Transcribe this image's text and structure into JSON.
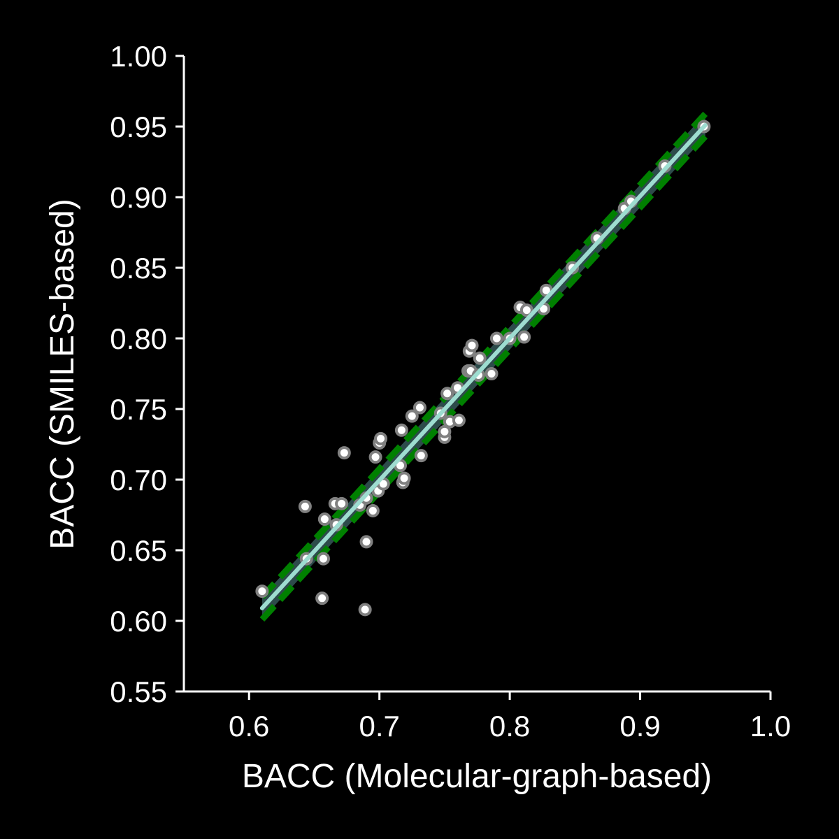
{
  "chart_data": {
    "type": "scatter",
    "title": "",
    "xlabel": "BACC (Molecular-graph-based)",
    "ylabel": "BACC (SMILES-based)",
    "xlim": [
      0.55,
      1.0
    ],
    "ylim": [
      0.55,
      1.0
    ],
    "xticks": [
      "0.6",
      "0.7",
      "0.8",
      "0.9",
      "1.0"
    ],
    "yticks": [
      "0.55",
      "0.60",
      "0.65",
      "0.70",
      "0.75",
      "0.80",
      "0.85",
      "0.90",
      "0.95",
      "1.00"
    ],
    "grid": false,
    "colors": {
      "background": "#000000",
      "axis": "#ffffff",
      "point_fill": "#ffffff",
      "point_edge": "#808080",
      "fit_line": "#9edcd0",
      "confidence_band": "#2f4f4f",
      "confidence_bounds": "#008000"
    },
    "fit": {
      "x_range": [
        0.61,
        0.95
      ],
      "y_range": [
        0.609,
        0.951
      ],
      "band_halfwidth": 0.008
    },
    "points": [
      [
        0.61,
        0.621
      ],
      [
        0.643,
        0.681
      ],
      [
        0.644,
        0.644
      ],
      [
        0.656,
        0.616
      ],
      [
        0.657,
        0.644
      ],
      [
        0.658,
        0.672
      ],
      [
        0.666,
        0.683
      ],
      [
        0.667,
        0.668
      ],
      [
        0.671,
        0.683
      ],
      [
        0.673,
        0.719
      ],
      [
        0.685,
        0.682
      ],
      [
        0.689,
        0.608
      ],
      [
        0.69,
        0.656
      ],
      [
        0.69,
        0.687
      ],
      [
        0.695,
        0.678
      ],
      [
        0.697,
        0.716
      ],
      [
        0.699,
        0.692
      ],
      [
        0.7,
        0.726
      ],
      [
        0.701,
        0.729
      ],
      [
        0.703,
        0.697
      ],
      [
        0.716,
        0.71
      ],
      [
        0.717,
        0.735
      ],
      [
        0.718,
        0.698
      ],
      [
        0.719,
        0.701
      ],
      [
        0.725,
        0.745
      ],
      [
        0.731,
        0.751
      ],
      [
        0.732,
        0.717
      ],
      [
        0.747,
        0.747
      ],
      [
        0.75,
        0.73
      ],
      [
        0.75,
        0.734
      ],
      [
        0.752,
        0.761
      ],
      [
        0.754,
        0.741
      ],
      [
        0.76,
        0.765
      ],
      [
        0.761,
        0.742
      ],
      [
        0.768,
        0.777
      ],
      [
        0.769,
        0.791
      ],
      [
        0.77,
        0.777
      ],
      [
        0.771,
        0.795
      ],
      [
        0.776,
        0.774
      ],
      [
        0.777,
        0.786
      ],
      [
        0.786,
        0.775
      ],
      [
        0.79,
        0.8
      ],
      [
        0.8,
        0.8
      ],
      [
        0.808,
        0.822
      ],
      [
        0.811,
        0.801
      ],
      [
        0.813,
        0.82
      ],
      [
        0.826,
        0.821
      ],
      [
        0.828,
        0.834
      ],
      [
        0.848,
        0.85
      ],
      [
        0.867,
        0.871
      ],
      [
        0.888,
        0.892
      ],
      [
        0.893,
        0.897
      ],
      [
        0.919,
        0.922
      ],
      [
        0.949,
        0.95
      ]
    ]
  }
}
